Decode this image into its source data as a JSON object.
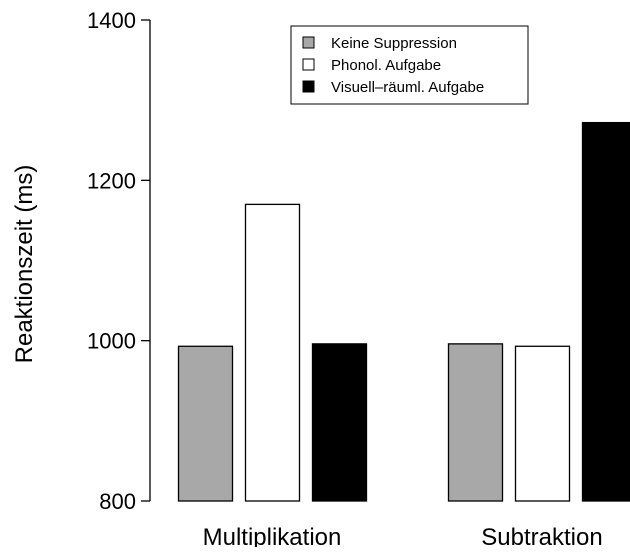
{
  "chart_data": {
    "type": "bar",
    "title": "",
    "xlabel": "",
    "ylabel": "Reaktionszeit (ms)",
    "ylim": [
      800,
      1400
    ],
    "yticks": [
      800,
      1000,
      1200,
      1400
    ],
    "grid": false,
    "legend_position": "top-right",
    "categories": [
      "Multiplikation",
      "Subtraktion"
    ],
    "series": [
      {
        "name": "Keine Suppression",
        "color": "#a8a8a8",
        "values": [
          993,
          996
        ]
      },
      {
        "name": "Phonol. Aufgabe",
        "color": "#ffffff",
        "values": [
          1170,
          993
        ]
      },
      {
        "name": "Visuell–räuml. Aufgabe",
        "color": "#000000",
        "values": [
          996,
          1272
        ]
      }
    ]
  }
}
